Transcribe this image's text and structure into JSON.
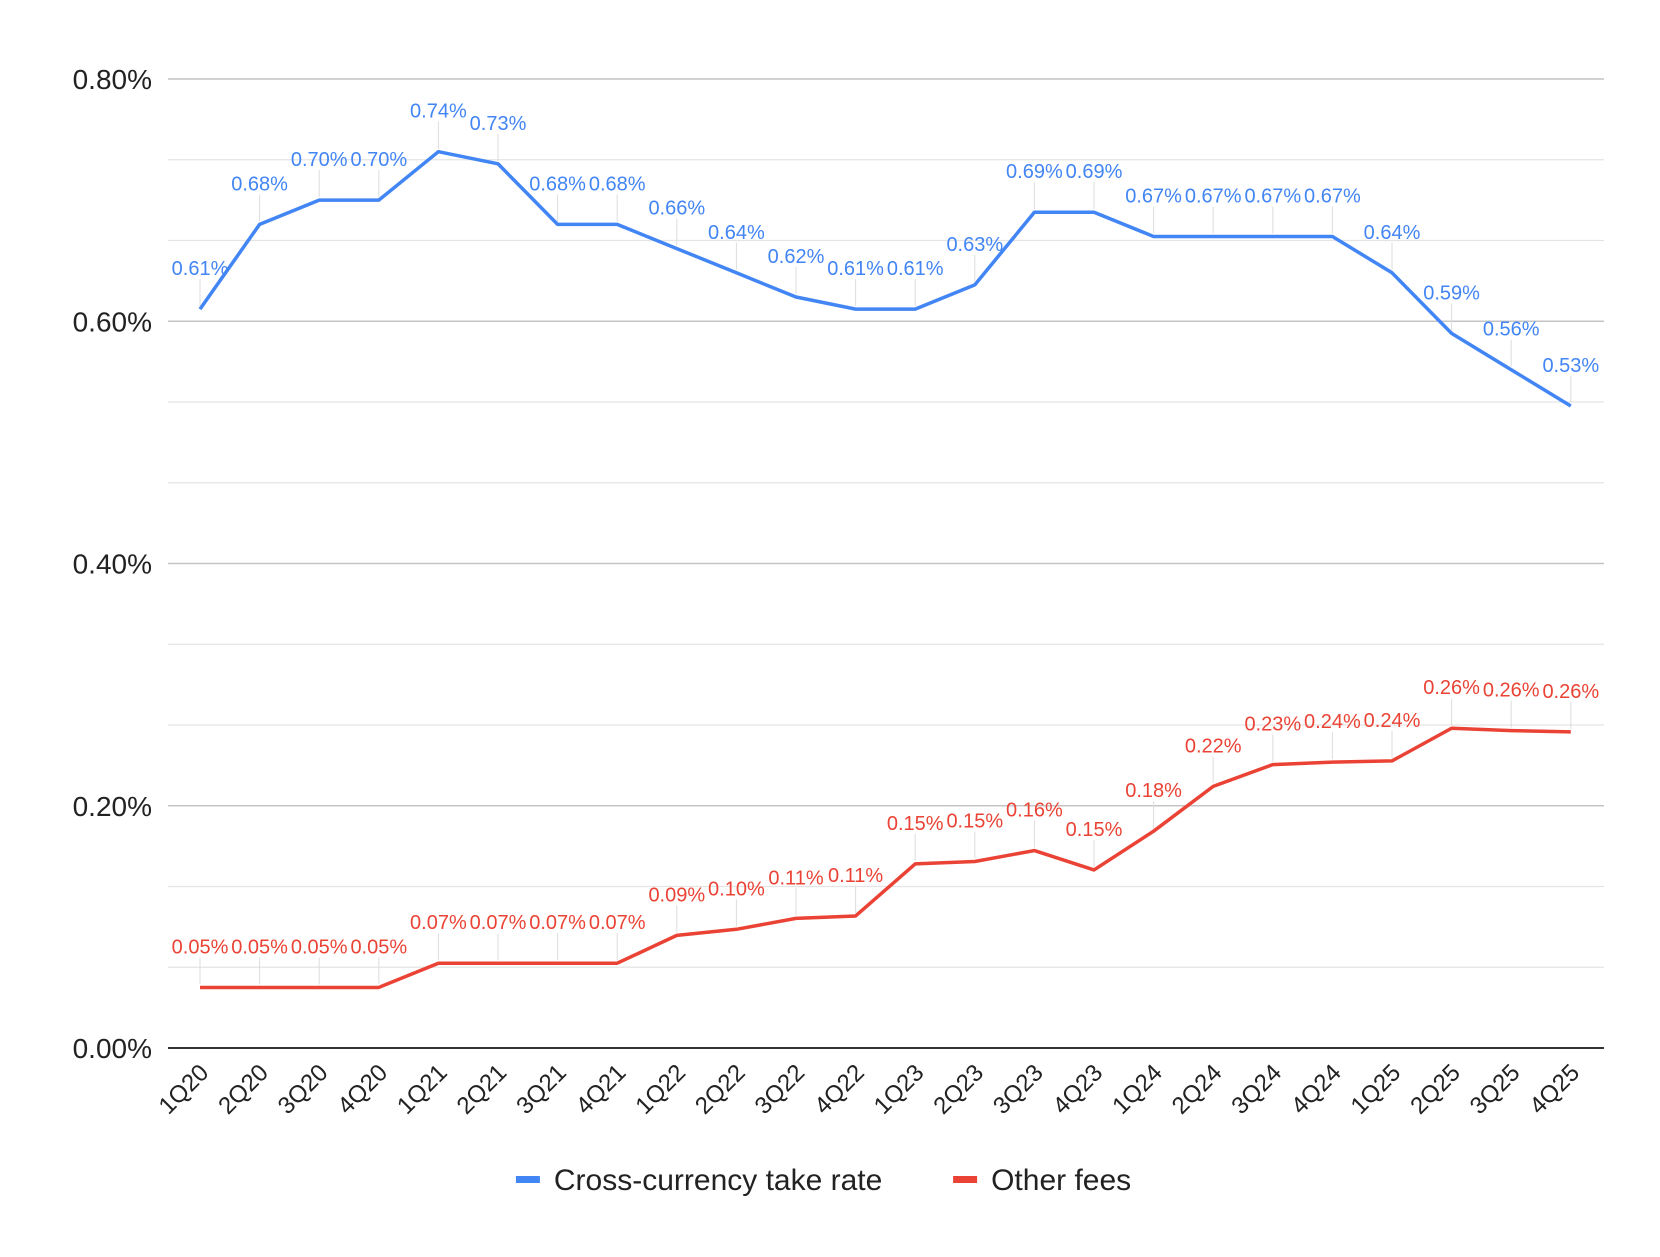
{
  "chart_data": {
    "type": "line",
    "title": "",
    "xlabel": "",
    "ylabel": "",
    "ylim": [
      0,
      0.8
    ],
    "y_unit": "%",
    "y_ticks": [
      "0.00%",
      "0.20%",
      "0.40%",
      "0.60%",
      "0.80%"
    ],
    "y_tick_values": [
      0,
      0.2,
      0.4,
      0.6,
      0.8
    ],
    "y_minor_grid_step": 0.0667,
    "grid": true,
    "legend_position": "bottom",
    "categories": [
      "1Q20",
      "2Q20",
      "3Q20",
      "4Q20",
      "1Q21",
      "2Q21",
      "3Q21",
      "4Q21",
      "1Q22",
      "2Q22",
      "3Q22",
      "4Q22",
      "1Q23",
      "2Q23",
      "3Q23",
      "4Q23",
      "1Q24",
      "2Q24",
      "3Q24",
      "4Q24",
      "1Q25",
      "2Q25",
      "3Q25",
      "4Q25"
    ],
    "series": [
      {
        "name": "Cross-currency take rate",
        "color": "#4285F4",
        "values": [
          0.61,
          0.68,
          0.7,
          0.7,
          0.74,
          0.73,
          0.68,
          0.68,
          0.66,
          0.64,
          0.62,
          0.61,
          0.61,
          0.63,
          0.69,
          0.69,
          0.67,
          0.67,
          0.67,
          0.67,
          0.64,
          0.59,
          0.56,
          0.53
        ],
        "labels": [
          "0.61%",
          "0.68%",
          "0.70%",
          "0.70%",
          "0.74%",
          "0.73%",
          "0.68%",
          "0.68%",
          "0.66%",
          "0.64%",
          "0.62%",
          "0.61%",
          "0.61%",
          "0.63%",
          "0.69%",
          "0.69%",
          "0.67%",
          "0.67%",
          "0.67%",
          "0.67%",
          "0.64%",
          "0.59%",
          "0.56%",
          "0.53%"
        ]
      },
      {
        "name": "Other fees",
        "color": "#EA4335",
        "values": [
          0.05,
          0.05,
          0.05,
          0.05,
          0.07,
          0.07,
          0.07,
          0.07,
          0.093,
          0.098,
          0.107,
          0.109,
          0.152,
          0.154,
          0.163,
          0.147,
          0.179,
          0.216,
          0.234,
          0.236,
          0.237,
          0.264,
          0.262,
          0.261
        ],
        "labels": [
          "0.05%",
          "0.05%",
          "0.05%",
          "0.05%",
          "0.07%",
          "0.07%",
          "0.07%",
          "0.07%",
          "0.09%",
          "0.10%",
          "0.11%",
          "0.11%",
          "0.15%",
          "0.15%",
          "0.16%",
          "0.15%",
          "0.18%",
          "0.22%",
          "0.23%",
          "0.24%",
          "0.24%",
          "0.26%",
          "0.26%",
          "0.26%"
        ]
      }
    ]
  }
}
